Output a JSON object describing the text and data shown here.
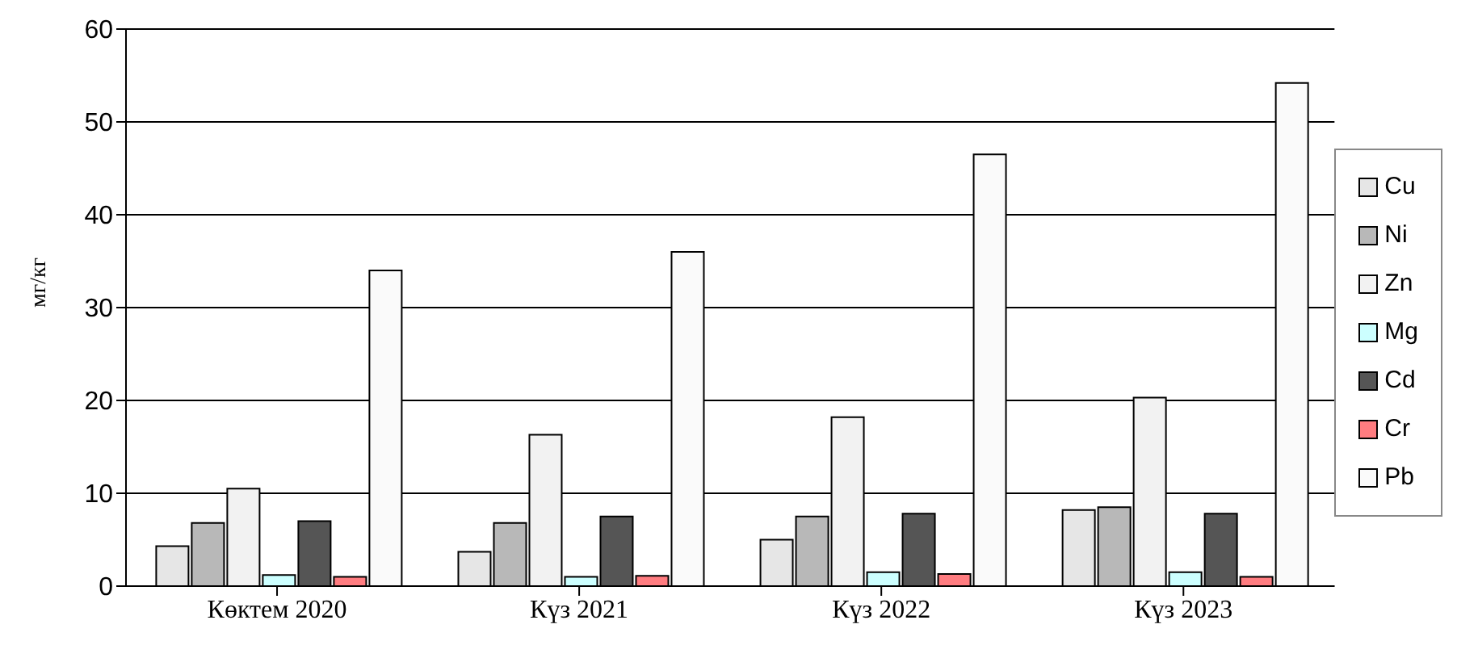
{
  "chart_data": {
    "type": "bar",
    "ylabel": "мг/кг",
    "categories": [
      "Көктем 2020",
      "Күз 2021",
      "Күз 2022",
      "Күз 2023"
    ],
    "series": [
      {
        "name": "Cu",
        "color": "#e6e6e6",
        "values": [
          4.3,
          3.7,
          5,
          8.2
        ]
      },
      {
        "name": "Ni",
        "color": "#b8b8b8",
        "values": [
          6.8,
          6.8,
          7.5,
          8.5
        ]
      },
      {
        "name": "Zn",
        "color": "#f2f2f2",
        "values": [
          10.5,
          16.3,
          18.2,
          20.3
        ]
      },
      {
        "name": "Mg",
        "color": "#ccffff",
        "values": [
          1.2,
          1,
          1.5,
          1.5
        ]
      },
      {
        "name": "Cd",
        "color": "#555555",
        "values": [
          7,
          7.5,
          7.8,
          7.8
        ]
      },
      {
        "name": "Cr",
        "color": "#ff7c80",
        "values": [
          1,
          1.1,
          1.3,
          1
        ]
      },
      {
        "name": "Pb",
        "color": "#fafafa",
        "values": [
          34,
          36,
          46.5,
          54.2
        ]
      }
    ],
    "ylim": [
      0,
      60
    ],
    "yticks": [
      0,
      10,
      20,
      30,
      40,
      50,
      60
    ],
    "grid": "y",
    "legend": "right"
  }
}
